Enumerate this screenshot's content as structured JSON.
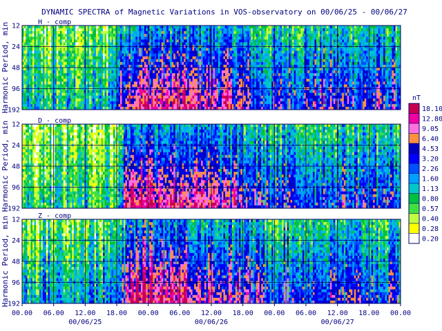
{
  "chart_data": {
    "type": "heatmap",
    "title": "DYNAMIC SPECTRA of Magnetic Variations in VOS-observatory on 00/06/25 - 00/06/27",
    "ylabel": "Harmonic Period, min",
    "y_ticks": [
      "12",
      "24",
      "48",
      "96",
      "192"
    ],
    "x_ticks": [
      "00.00",
      "06.00",
      "12.00",
      "18.00",
      "00.00",
      "06.00",
      "12.00",
      "18.00",
      "00.00",
      "06.00",
      "12.00",
      "18.00",
      "00.00"
    ],
    "dates": [
      "00/06/25",
      "00/06/26",
      "00/06/27"
    ],
    "panels": [
      {
        "label": "H - comp",
        "activity": [
          [
            0,
            0.3
          ],
          [
            16,
            0.35
          ],
          [
            20,
            0.85
          ],
          [
            28,
            0.8
          ],
          [
            40,
            0.75
          ],
          [
            46,
            0.55
          ],
          [
            56,
            0.65
          ],
          [
            72,
            0.6
          ]
        ]
      },
      {
        "label": "D - comp",
        "activity": [
          [
            0,
            0.3
          ],
          [
            18,
            0.3
          ],
          [
            20,
            0.9
          ],
          [
            28,
            0.85
          ],
          [
            40,
            0.7
          ],
          [
            48,
            0.55
          ],
          [
            60,
            0.6
          ],
          [
            72,
            0.55
          ]
        ]
      },
      {
        "label": "Z - comp",
        "activity": [
          [
            0,
            0.4
          ],
          [
            18,
            0.45
          ],
          [
            21,
            0.9
          ],
          [
            30,
            0.85
          ],
          [
            40,
            0.7
          ],
          [
            48,
            0.6
          ],
          [
            60,
            0.6
          ],
          [
            72,
            0.55
          ]
        ]
      }
    ],
    "legend": {
      "unit": "nT",
      "levels": [
        "18.10",
        "12.80",
        "9.05",
        "6.40",
        "4.53",
        "3.20",
        "2.26",
        "1.60",
        "1.13",
        "0.80",
        "0.57",
        "0.40",
        "0.28",
        "0.20"
      ],
      "colors": [
        "#c80050",
        "#f000a0",
        "#ff70e0",
        "#ff9040",
        "#0000c0",
        "#0000ff",
        "#0050ff",
        "#00a0ff",
        "#00c8c8",
        "#00c040",
        "#40e040",
        "#c0ff40",
        "#ffff00",
        "#ffffff"
      ]
    },
    "grid": true
  }
}
